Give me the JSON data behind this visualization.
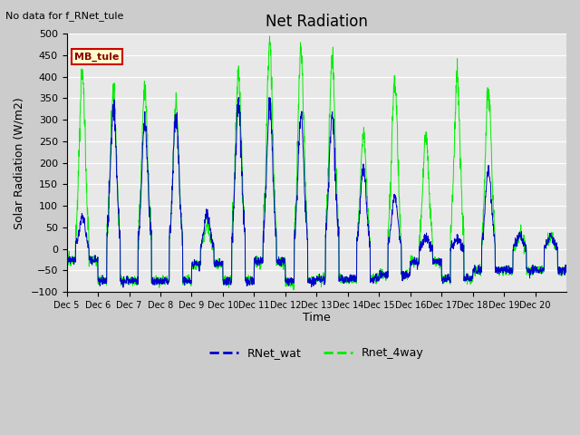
{
  "title": "Net Radiation",
  "xlabel": "Time",
  "ylabel": "Solar Radiation (W/m2)",
  "ylim": [
    -100,
    500
  ],
  "line_color_blue": "#0000cc",
  "line_color_green": "#00ee00",
  "annotation_text": "No data for f_RNet_tule",
  "legend_box_text": "MB_tule",
  "legend_box_bg": "#ffffcc",
  "legend_box_border": "#cc0000",
  "yticks": [
    -100,
    -50,
    0,
    50,
    100,
    150,
    200,
    250,
    300,
    350,
    400,
    450,
    500
  ],
  "xtick_labels": [
    "Dec 5",
    "Dec 6",
    "Dec 7",
    "Dec 8",
    "Dec 9",
    "Dec 10",
    "Dec 11",
    "Dec 12",
    "Dec 13",
    "Dec 14",
    "Dec 15",
    "Dec 16",
    "Dec 17",
    "Dec 18",
    "Dec 19",
    "Dec 20"
  ],
  "xtick_positions": [
    0,
    1,
    2,
    3,
    4,
    5,
    6,
    7,
    8,
    9,
    10,
    11,
    12,
    13,
    14,
    15
  ],
  "n_days": 16,
  "ppd": 144,
  "green_peaks": [
    410,
    370,
    370,
    335,
    50,
    405,
    480,
    465,
    445,
    265,
    390,
    265,
    390,
    370,
    30,
    30
  ],
  "blue_peaks": [
    75,
    330,
    295,
    310,
    80,
    335,
    330,
    310,
    310,
    185,
    120,
    25,
    25,
    185,
    30,
    30
  ],
  "night_green": [
    -25,
    -75,
    -75,
    -75,
    -35,
    -75,
    -30,
    -75,
    -70,
    -70,
    -60,
    -30,
    -70,
    -50,
    -50,
    -50
  ],
  "night_blue": [
    -25,
    -75,
    -75,
    -75,
    -35,
    -75,
    -30,
    -75,
    -70,
    -70,
    -60,
    -30,
    -70,
    -50,
    -50,
    -50
  ]
}
